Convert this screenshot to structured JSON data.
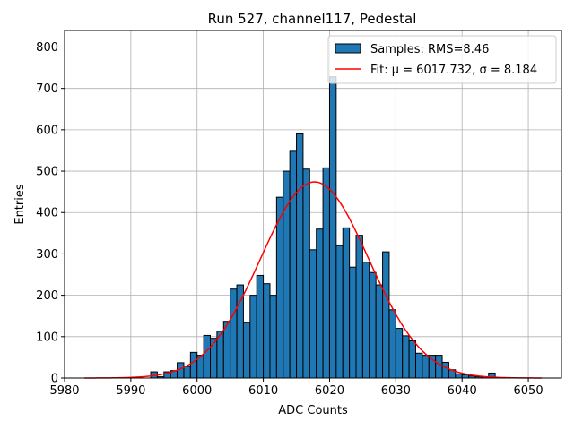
{
  "chart_data": {
    "type": "bar",
    "title": "Run 527, channel117, Pedestal",
    "xlabel": "ADC Counts",
    "ylabel": "Entries",
    "xlim": [
      5980,
      6055
    ],
    "ylim": [
      0,
      840
    ],
    "xticks": [
      5980,
      5990,
      6000,
      6010,
      6020,
      6030,
      6040,
      6050
    ],
    "yticks": [
      0,
      100,
      200,
      300,
      400,
      500,
      600,
      700,
      800
    ],
    "grid": true,
    "legend_position": "top-right",
    "bin_width": 1,
    "bin_start": 5993,
    "counts": [
      15,
      3,
      15,
      18,
      37,
      28,
      62,
      55,
      103,
      96,
      113,
      137,
      215,
      225,
      135,
      200,
      248,
      228,
      200,
      437,
      500,
      548,
      590,
      505,
      310,
      360,
      508,
      728,
      320,
      363,
      268,
      345,
      280,
      255,
      225,
      305,
      165,
      120,
      102,
      90,
      60,
      55,
      55,
      55,
      38,
      20,
      10,
      8,
      5,
      3,
      3,
      12
    ],
    "series": [
      {
        "name": "Samples: RMS=8.46",
        "kind": "histogram",
        "color": "#1f77b4",
        "edge_color": "#000000"
      },
      {
        "name": "Fit: μ = 6017.732, σ = 8.184",
        "kind": "line",
        "color": "#ff0000",
        "mu": 6017.732,
        "sigma": 8.184,
        "amplitude": 474,
        "x_range": [
          5983,
          6052
        ]
      }
    ]
  }
}
